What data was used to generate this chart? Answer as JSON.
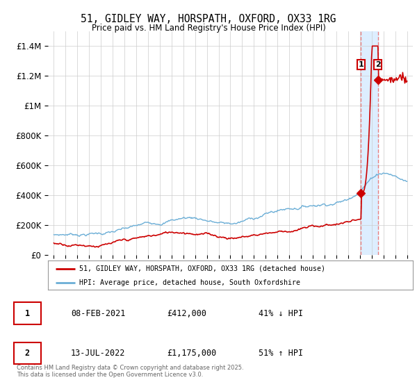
{
  "title_line1": "51, GIDLEY WAY, HORSPATH, OXFORD, OX33 1RG",
  "title_line2": "Price paid vs. HM Land Registry's House Price Index (HPI)",
  "hpi_color": "#6baed6",
  "price_color": "#cc0000",
  "vline_color": "#e88080",
  "shade_color": "#ddeeff",
  "background_color": "#ffffff",
  "grid_color": "#cccccc",
  "ylim": [
    0,
    1500000
  ],
  "yticks": [
    0,
    200000,
    400000,
    600000,
    800000,
    1000000,
    1200000,
    1400000
  ],
  "ytick_labels": [
    "£0",
    "£200K",
    "£400K",
    "£600K",
    "£800K",
    "£1M",
    "£1.2M",
    "£1.4M"
  ],
  "xlim_start": 1994.5,
  "xlim_end": 2025.5,
  "sale1_date": 2021.1,
  "sale1_price": 412000,
  "sale1_label": "1",
  "sale2_date": 2022.54,
  "sale2_price": 1175000,
  "sale2_label": "2",
  "legend_line1": "51, GIDLEY WAY, HORSPATH, OXFORD, OX33 1RG (detached house)",
  "legend_line2": "HPI: Average price, detached house, South Oxfordshire",
  "table_row1": [
    "1",
    "08-FEB-2021",
    "£412,000",
    "41% ↓ HPI"
  ],
  "table_row2": [
    "2",
    "13-JUL-2022",
    "£1,175,000",
    "51% ↑ HPI"
  ],
  "footer": "Contains HM Land Registry data © Crown copyright and database right 2025.\nThis data is licensed under the Open Government Licence v3.0."
}
